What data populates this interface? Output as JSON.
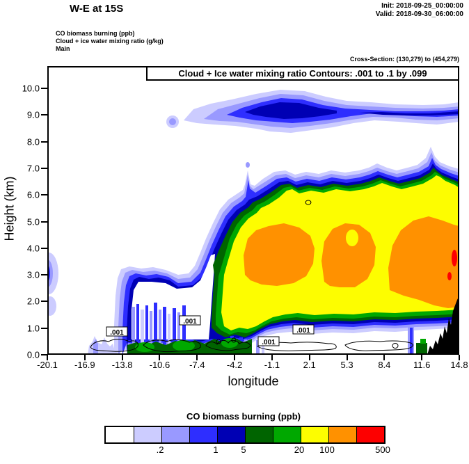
{
  "header": {
    "title": "W-E at 15S",
    "init_line": "Init: 2018-09-25_00:00:00",
    "valid_line": "Valid: 2018-09-30_06:00:00",
    "legend_lines": [
      "CO biomass burning (ppb)",
      "Cloud + ice water mixing ratio (g/kg)",
      "Main"
    ],
    "cross_section": "Cross-Section: (130,279) to (454,279)"
  },
  "plot": {
    "contour_note": "Cloud + Ice water mixing ratio Contours: .001 to .1 by .099",
    "xlabel": "longitude",
    "ylabel": "Height (km)",
    "contour_label": ".001"
  },
  "colorbar": {
    "title": "CO biomass burning (ppb)",
    "labels": [
      ".2",
      "1",
      "5",
      "20",
      "100",
      "500"
    ]
  },
  "chart_data": {
    "type": "heatmap",
    "title": "W-E at 15S",
    "xlabel": "longitude",
    "ylabel": "Height (km)",
    "x_ticks": [
      -20.1,
      -16.9,
      -13.8,
      -10.6,
      -7.4,
      -4.2,
      -1.1,
      2.1,
      5.3,
      8.4,
      11.6,
      14.8
    ],
    "x_tick_labels": [
      "-20.1",
      "-16.9",
      "-13.8",
      "-10.6",
      "-7.4",
      "-4.2",
      "-1.1",
      "2.1",
      "5.3",
      "8.4",
      "11.6",
      "14.8"
    ],
    "y_ticks": [
      0,
      1,
      2,
      3,
      4,
      5,
      6,
      7,
      8,
      9,
      10
    ],
    "y_tick_labels": [
      "0.0",
      "1.0",
      "2.0",
      "3.0",
      "4.0",
      "5.0",
      "6.0",
      "7.0",
      "8.0",
      "9.0",
      "10.0"
    ],
    "xlim": [
      -20.1,
      14.8
    ],
    "ylim": [
      0,
      10.8
    ],
    "fill_field": "CO biomass burning (ppb)",
    "fill_levels": [
      0.1,
      0.2,
      0.5,
      1,
      5,
      10,
      20,
      100,
      200,
      500
    ],
    "fill_colors": [
      "#ffffff",
      "#ccccff",
      "#9999ff",
      "#2e2eff",
      "#0000b4",
      "#006400",
      "#00a800",
      "#fdfd00",
      "#ff9100",
      "#fd0000"
    ],
    "colorbar_labeled_levels": [
      ".2",
      "1",
      "5",
      "20",
      "100",
      "500"
    ],
    "contour_field": "Cloud + Ice water mixing ratio (g/kg)",
    "contour_levels": ".001 to .1 by .099",
    "cross_section_points": "(130,279) to (454,279)",
    "features": [
      "Surface smoke layer (5-20+ ppb, greens) below ~1 km between lon -14 and -2",
      "Main elevated smoke plume from ~1 to 7 km spanning lon -8 to 14.8, with 100+ ppb orange core at 2.5-5.5 km",
      "Elevated CO band (1-10 ppb, blues) near 8.5-10 km from lon -6 to 14.8",
      "Black terrain profile at lower right rising to ~2.2 km at lon 14.8",
      "Cloud + ice .001 g/kg contour loops in the lowest 1.5 km and a small one near 5.7 km"
    ]
  }
}
